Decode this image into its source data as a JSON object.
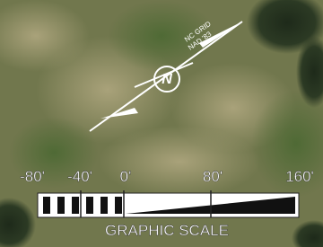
{
  "north_arrow": {
    "lines": [
      "NC GRID",
      "NAD '83"
    ],
    "symbol": "N"
  },
  "scale": {
    "labels": [
      "-80'",
      "-40'",
      "0'",
      "80'",
      "160'"
    ],
    "title": "GRAPHIC SCALE"
  }
}
